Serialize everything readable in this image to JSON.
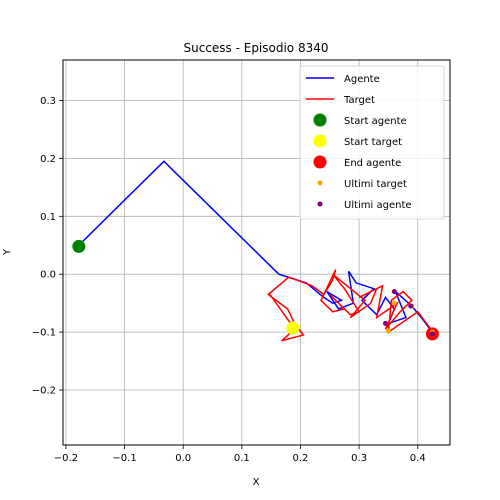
{
  "chart_data": {
    "type": "line",
    "title": "Success - Episodio 8340",
    "xlabel": "X",
    "ylabel": "Y",
    "xlim": [
      -0.205,
      0.455
    ],
    "ylim": [
      -0.295,
      0.37
    ],
    "xticks": [
      -0.2,
      -0.1,
      0.0,
      0.1,
      0.2,
      0.3,
      0.4
    ],
    "xtick_labels": [
      "−0.2",
      "−0.1",
      "0.0",
      "0.1",
      "0.2",
      "0.3",
      "0.4"
    ],
    "yticks": [
      -0.2,
      -0.1,
      0.0,
      0.1,
      0.2,
      0.3
    ],
    "ytick_labels": [
      "−0.2",
      "−0.1",
      "0.0",
      "0.1",
      "0.2",
      "0.3"
    ],
    "grid": true,
    "legend_position": "top-right",
    "series": [
      {
        "name": "Agente",
        "kind": "line",
        "color": "#0000ff",
        "x": [
          -0.178,
          -0.033,
          0.163,
          0.21,
          0.24,
          0.255,
          0.27,
          0.245,
          0.265,
          0.29,
          0.282,
          0.295,
          0.325,
          0.305,
          0.33,
          0.345,
          0.36,
          0.35,
          0.38,
          0.362,
          0.39,
          0.41,
          0.428
        ],
        "y": [
          0.05,
          0.195,
          0.0,
          -0.015,
          -0.04,
          -0.05,
          -0.045,
          -0.03,
          -0.06,
          -0.05,
          0.005,
          -0.015,
          -0.025,
          -0.045,
          -0.07,
          -0.04,
          -0.06,
          -0.085,
          -0.075,
          -0.03,
          -0.055,
          -0.08,
          -0.105
        ]
      },
      {
        "name": "Target",
        "kind": "line",
        "color": "#ff0000",
        "x": [
          0.148,
          0.19,
          0.168,
          0.205,
          0.19,
          0.178,
          0.145,
          0.18,
          0.22,
          0.24,
          0.255,
          0.26,
          0.235,
          0.255,
          0.275,
          0.25,
          0.285,
          0.3,
          0.275,
          0.255,
          0.31,
          0.285,
          0.32,
          0.33,
          0.3,
          0.34,
          0.33,
          0.365,
          0.345,
          0.37,
          0.39,
          0.375,
          0.355,
          0.35,
          0.4,
          0.415,
          0.43
        ],
        "y": [
          -0.035,
          -0.095,
          -0.115,
          -0.105,
          -0.085,
          -0.06,
          -0.035,
          -0.005,
          -0.02,
          -0.035,
          -0.01,
          0.008,
          -0.045,
          -0.065,
          -0.06,
          -0.035,
          -0.07,
          -0.065,
          -0.025,
          0.0,
          -0.045,
          -0.075,
          -0.05,
          -0.025,
          -0.04,
          -0.02,
          -0.075,
          -0.05,
          -0.095,
          -0.065,
          -0.045,
          -0.03,
          -0.045,
          -0.1,
          -0.065,
          -0.085,
          -0.105
        ]
      },
      {
        "name": "Start agente",
        "kind": "marker",
        "color": "#008000",
        "size": "large",
        "x": [
          -0.178
        ],
        "y": [
          0.048
        ]
      },
      {
        "name": "Start target",
        "kind": "marker",
        "color": "#ffff00",
        "size": "large",
        "x": [
          0.187
        ],
        "y": [
          -0.093
        ]
      },
      {
        "name": "End agente",
        "kind": "marker",
        "color": "#ff0000",
        "size": "large",
        "x": [
          0.425
        ],
        "y": [
          -0.103
        ]
      },
      {
        "name": "Ultimi target",
        "kind": "scatter",
        "color": "#ffa500",
        "size": "small",
        "x": [
          0.35,
          0.36,
          0.39,
          0.425
        ],
        "y": [
          -0.098,
          -0.05,
          -0.055,
          -0.1
        ]
      },
      {
        "name": "Ultimi agente",
        "kind": "scatter",
        "color": "#800080",
        "size": "small",
        "x": [
          0.345,
          0.36,
          0.388,
          0.425
        ],
        "y": [
          -0.085,
          -0.03,
          -0.055,
          -0.103
        ]
      }
    ]
  }
}
